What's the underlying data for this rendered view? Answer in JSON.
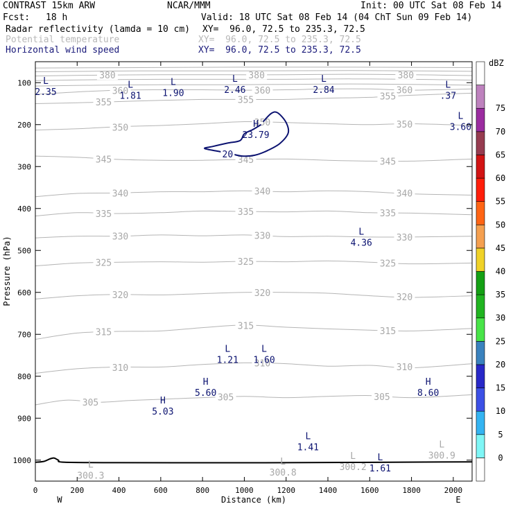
{
  "header": {
    "model": "CONTRAST 15km ARW",
    "center": "NCAR/MMM",
    "init": "Init: 00 UTC Sat 08 Feb 14",
    "fcst_label": "Fcst:",
    "fcst_value": "18 h",
    "valid": "Valid: 18 UTC Sat 08 Feb 14 (04 ChT Sun 09 Feb 14)"
  },
  "fields": [
    {
      "name": "Radar reflectivity (lamda = 10 cm)",
      "xy": "XY=  96.0, 72.5 to 235.3, 72.5",
      "color": "#000000"
    },
    {
      "name": "Potential temperature",
      "xy": "XY=  96.0, 72.5 to 235.3, 72.5",
      "color": "#b8b8b8"
    },
    {
      "name": "Horizontal wind speed",
      "xy": "XY=  96.0, 72.5 to 235.3, 72.5",
      "color": "#1a1a7a"
    }
  ],
  "chart_data": {
    "type": "cross-section",
    "xlabel": "Distance (km)",
    "ylabel": "Pressure (hPa)",
    "xlim": [
      0,
      2090
    ],
    "ylim": [
      1050,
      50
    ],
    "x_ticks": [
      0,
      200,
      400,
      600,
      800,
      1000,
      1200,
      1400,
      1600,
      1800,
      2000
    ],
    "y_ticks": [
      100,
      200,
      300,
      400,
      500,
      600,
      700,
      800,
      900,
      1000
    ],
    "x_end_labels": {
      "left": "W",
      "right": "E"
    },
    "colorbar": {
      "unit": "dBZ",
      "levels": [
        0,
        5,
        10,
        15,
        20,
        25,
        30,
        35,
        40,
        45,
        50,
        55,
        60,
        65,
        70,
        75
      ],
      "colors": [
        "#ffffff",
        "#7ff6f6",
        "#34b4f2",
        "#3c50e6",
        "#2828c8",
        "#3a82be",
        "#48e448",
        "#20b420",
        "#14a014",
        "#f0d228",
        "#f5a050",
        "#ff6414",
        "#ff1e0a",
        "#d21414",
        "#963c50",
        "#9b2ca0",
        "#be82be",
        "#ffffff"
      ]
    },
    "theta_contours": [
      {
        "label": "305",
        "points": [
          [
            0,
            868
          ],
          [
            150,
            857
          ],
          [
            300,
            862
          ],
          [
            450,
            858
          ],
          [
            600,
            855
          ],
          [
            800,
            851
          ],
          [
            1000,
            848
          ],
          [
            1200,
            851
          ],
          [
            1400,
            848
          ],
          [
            1600,
            846
          ],
          [
            1800,
            851
          ],
          [
            2090,
            844
          ]
        ]
      },
      {
        "label": "310",
        "points": [
          [
            0,
            793
          ],
          [
            200,
            782
          ],
          [
            400,
            778
          ],
          [
            600,
            778
          ],
          [
            800,
            772
          ],
          [
            1000,
            768
          ],
          [
            1200,
            770
          ],
          [
            1400,
            776
          ],
          [
            1600,
            774
          ],
          [
            1800,
            780
          ],
          [
            2090,
            770
          ]
        ]
      },
      {
        "label": "315",
        "points": [
          [
            0,
            712
          ],
          [
            200,
            697
          ],
          [
            400,
            693
          ],
          [
            600,
            692
          ],
          [
            800,
            684
          ],
          [
            1000,
            678
          ],
          [
            1200,
            683
          ],
          [
            1400,
            687
          ],
          [
            1600,
            690
          ],
          [
            1800,
            692
          ],
          [
            2090,
            686
          ]
        ]
      },
      {
        "label": "320",
        "points": [
          [
            0,
            616
          ],
          [
            200,
            608
          ],
          [
            400,
            605
          ],
          [
            600,
            606
          ],
          [
            800,
            603
          ],
          [
            1000,
            600
          ],
          [
            1200,
            600
          ],
          [
            1400,
            602
          ],
          [
            1600,
            608
          ],
          [
            1800,
            612
          ],
          [
            2090,
            608
          ]
        ]
      },
      {
        "label": "325",
        "points": [
          [
            0,
            537
          ],
          [
            200,
            530
          ],
          [
            400,
            528
          ],
          [
            600,
            527
          ],
          [
            800,
            528
          ],
          [
            1000,
            526
          ],
          [
            1200,
            527
          ],
          [
            1400,
            525
          ],
          [
            1600,
            528
          ],
          [
            1800,
            532
          ],
          [
            2090,
            530
          ]
        ]
      },
      {
        "label": "330",
        "points": [
          [
            0,
            470
          ],
          [
            200,
            466
          ],
          [
            400,
            466
          ],
          [
            600,
            463
          ],
          [
            800,
            465
          ],
          [
            1000,
            463
          ],
          [
            1200,
            467
          ],
          [
            1400,
            466
          ],
          [
            1600,
            468
          ],
          [
            1800,
            468
          ],
          [
            2090,
            466
          ]
        ]
      },
      {
        "label": "335",
        "points": [
          [
            0,
            418
          ],
          [
            200,
            410
          ],
          [
            400,
            412
          ],
          [
            600,
            410
          ],
          [
            800,
            406
          ],
          [
            1000,
            407
          ],
          [
            1200,
            408
          ],
          [
            1400,
            406
          ],
          [
            1600,
            410
          ],
          [
            1800,
            411
          ],
          [
            2090,
            415
          ]
        ]
      },
      {
        "label": "340",
        "points": [
          [
            0,
            372
          ],
          [
            200,
            364
          ],
          [
            400,
            363
          ],
          [
            600,
            360
          ],
          [
            800,
            360
          ],
          [
            1000,
            358
          ],
          [
            1200,
            360
          ],
          [
            1400,
            358
          ],
          [
            1600,
            360
          ],
          [
            1800,
            365
          ],
          [
            2090,
            368
          ]
        ]
      },
      {
        "label": "345",
        "points": [
          [
            0,
            275
          ],
          [
            200,
            278
          ],
          [
            400,
            283
          ],
          [
            600,
            285
          ],
          [
            800,
            285
          ],
          [
            1000,
            283
          ],
          [
            1200,
            282
          ],
          [
            1400,
            285
          ],
          [
            1600,
            287
          ],
          [
            1800,
            287
          ],
          [
            2090,
            282
          ]
        ]
      },
      {
        "label": "350",
        "points": [
          [
            0,
            213
          ],
          [
            200,
            210
          ],
          [
            400,
            205
          ],
          [
            600,
            202
          ],
          [
            800,
            198
          ],
          [
            1000,
            193
          ],
          [
            1200,
            195
          ],
          [
            1400,
            198
          ],
          [
            1600,
            200
          ],
          [
            1800,
            198
          ],
          [
            2090,
            202
          ]
        ]
      },
      {
        "label": "355",
        "points": [
          [
            0,
            150
          ],
          [
            200,
            148
          ],
          [
            400,
            145
          ],
          [
            600,
            142
          ],
          [
            800,
            140
          ],
          [
            1000,
            140
          ],
          [
            1200,
            140
          ],
          [
            1400,
            137
          ],
          [
            1600,
            135
          ],
          [
            1800,
            130
          ],
          [
            2090,
            125
          ]
        ]
      },
      {
        "label": "360",
        "points": [
          [
            0,
            128
          ],
          [
            200,
            122
          ],
          [
            400,
            118
          ],
          [
            600,
            117
          ],
          [
            800,
            117
          ],
          [
            1000,
            118
          ],
          [
            1200,
            117
          ],
          [
            1400,
            115
          ],
          [
            1600,
            115
          ],
          [
            1800,
            118
          ],
          [
            2090,
            115
          ]
        ]
      },
      {
        "label": "",
        "points": [
          [
            0,
            108
          ],
          [
            300,
            106
          ],
          [
            600,
            105
          ],
          [
            900,
            105
          ],
          [
            1200,
            104
          ],
          [
            1500,
            103
          ],
          [
            1800,
            104
          ],
          [
            2090,
            106
          ]
        ]
      },
      {
        "label": "",
        "points": [
          [
            0,
            95
          ],
          [
            300,
            93
          ],
          [
            600,
            92
          ],
          [
            900,
            92
          ],
          [
            1200,
            92
          ],
          [
            1500,
            91
          ],
          [
            1800,
            92
          ],
          [
            2090,
            94
          ]
        ]
      },
      {
        "label": "380",
        "points": [
          [
            0,
            84
          ],
          [
            300,
            82
          ],
          [
            600,
            81
          ],
          [
            900,
            81
          ],
          [
            1200,
            81
          ],
          [
            1500,
            80
          ],
          [
            1800,
            81
          ],
          [
            2090,
            83
          ]
        ]
      },
      {
        "label": "",
        "points": [
          [
            0,
            74
          ],
          [
            500,
            72
          ],
          [
            1000,
            72
          ],
          [
            1500,
            71
          ],
          [
            2090,
            73
          ]
        ]
      },
      {
        "label": "",
        "points": [
          [
            0,
            65
          ],
          [
            500,
            64
          ],
          [
            1000,
            63
          ],
          [
            1500,
            63
          ],
          [
            2090,
            64
          ]
        ]
      }
    ],
    "wind_contours": [
      {
        "label": "20",
        "points": [
          [
            1090,
            193
          ],
          [
            1130,
            173
          ],
          [
            1160,
            172
          ],
          [
            1200,
            195
          ],
          [
            1210,
            220
          ],
          [
            1170,
            245
          ],
          [
            1110,
            262
          ],
          [
            1050,
            273
          ],
          [
            990,
            275
          ],
          [
            940,
            270
          ],
          [
            880,
            264
          ],
          [
            810,
            257
          ],
          [
            850,
            252
          ],
          [
            920,
            244
          ],
          [
            980,
            238
          ],
          [
            1000,
            222
          ],
          [
            1040,
            212
          ],
          [
            1080,
            200
          ]
        ]
      }
    ],
    "wind_extrema": [
      {
        "type": "L",
        "value": "2.35",
        "x": 50,
        "p": 103
      },
      {
        "type": "L",
        "value": "1.81",
        "x": 455,
        "p": 112
      },
      {
        "type": "L",
        "value": "1.90",
        "x": 660,
        "p": 105
      },
      {
        "type": "L",
        "value": "2.46",
        "x": 955,
        "p": 98
      },
      {
        "type": "L",
        "value": "2.84",
        "x": 1380,
        "p": 98
      },
      {
        "type": "L",
        "value": ".37",
        "x": 1975,
        "p": 112
      },
      {
        "type": "L",
        "value": "3.60",
        "x": 2035,
        "p": 186
      },
      {
        "type": "H",
        "value": "23.79",
        "x": 1055,
        "p": 205
      },
      {
        "type": "L",
        "value": "4.36",
        "x": 1560,
        "p": 462
      },
      {
        "type": "L",
        "value": "1.21",
        "x": 920,
        "p": 742
      },
      {
        "type": "L",
        "value": "1.60",
        "x": 1095,
        "p": 742
      },
      {
        "type": "H",
        "value": "5.60",
        "x": 815,
        "p": 820
      },
      {
        "type": "H",
        "value": "5.03",
        "x": 610,
        "p": 865
      },
      {
        "type": "H",
        "value": "8.60",
        "x": 1880,
        "p": 820
      },
      {
        "type": "L",
        "value": "1.41",
        "x": 1305,
        "p": 950
      },
      {
        "type": "L",
        "value": "1.61",
        "x": 1650,
        "p": 1000
      }
    ],
    "theta_extrema": [
      {
        "type": "L",
        "value": "300.3",
        "x": 265,
        "p": 1018
      },
      {
        "type": "L",
        "value": "300.8",
        "x": 1185,
        "p": 1010
      },
      {
        "type": "L",
        "value": "300.2",
        "x": 1520,
        "p": 997
      },
      {
        "type": "L",
        "value": "300.9",
        "x": 1945,
        "p": 970
      }
    ],
    "terrain": {
      "points": [
        [
          0,
          1005
        ],
        [
          40,
          1003
        ],
        [
          70,
          997
        ],
        [
          90,
          995
        ],
        [
          110,
          1000
        ],
        [
          140,
          1005
        ],
        [
          400,
          1006
        ],
        [
          1200,
          1006
        ],
        [
          2090,
          1004
        ]
      ]
    }
  }
}
